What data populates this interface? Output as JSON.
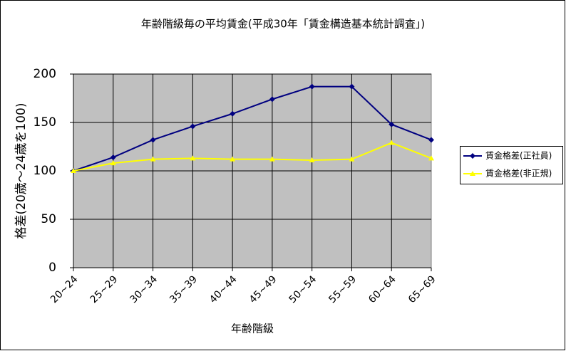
{
  "chart_data": {
    "type": "line",
    "title": "年齢階級毎の平均賃金(平成30年「賃金構造基本統計調査」)",
    "x_label": "年齢階級",
    "y_label": "格差(20歳～24歳を100)",
    "categories": [
      "20~24",
      "25~29",
      "30~34",
      "35~39",
      "40~44",
      "45~49",
      "50~54",
      "55~59",
      "60~64",
      "65~69"
    ],
    "series": [
      {
        "name": "賃金格差(正社員)",
        "color": "#000080",
        "marker": "diamond",
        "values": [
          100,
          114,
          132,
          146,
          159,
          174,
          187,
          187,
          148,
          132
        ]
      },
      {
        "name": "賃金格差(非正規)",
        "color": "#ffff00",
        "marker": "triangle",
        "values": [
          100,
          108,
          112,
          113,
          112,
          112,
          111,
          112,
          129,
          113
        ]
      }
    ],
    "ylim": [
      0,
      200
    ],
    "yticks": [
      0,
      50,
      100,
      150,
      200
    ],
    "grid": true,
    "plot_background": "#c0c0c0",
    "legend": "right"
  }
}
